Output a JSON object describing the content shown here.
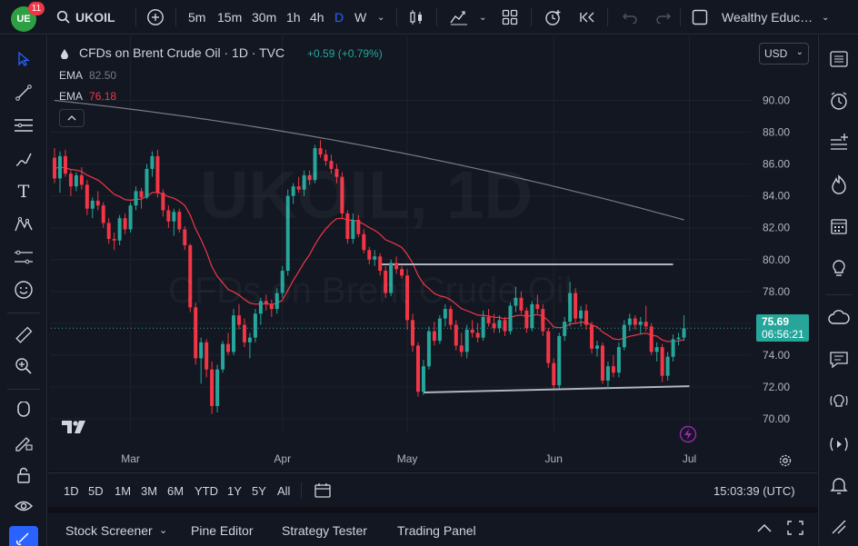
{
  "topbar": {
    "avatar_initials": "UE",
    "notification_count": "11",
    "symbol": "UKOIL",
    "intervals": [
      "5m",
      "15m",
      "30m",
      "1h",
      "4h",
      "D",
      "W"
    ],
    "active_interval": "D",
    "account_name": "Wealthy Educ…"
  },
  "legend": {
    "title": "CFDs on Brent Crude Oil · 1D · TVC",
    "change": "+0.59 (+0.79%)",
    "ema1_label": "EMA",
    "ema1_value": "82.50",
    "ema2_label": "EMA",
    "ema2_value": "76.18",
    "collapse_icon": "chevron-up"
  },
  "currency": "USD",
  "watermark": {
    "symbol": "UKOIL, 1D",
    "description": "CFDs on Brent Crude Oil"
  },
  "price_tag": {
    "price": "75.69",
    "countdown": "06:56:21"
  },
  "chart_data": {
    "type": "candlestick",
    "y_range": [
      69.2,
      91.8
    ],
    "y_ticks": [
      "90.00",
      "88.00",
      "86.00",
      "84.00",
      "82.00",
      "80.00",
      "78.00",
      "76.00",
      "74.00",
      "72.00",
      "70.00"
    ],
    "x_ticks": [
      "Mar",
      "Apr",
      "May",
      "Jun",
      "Jul"
    ],
    "candles_ohlc": [
      [
        86.4,
        87.0,
        84.8,
        85.1
      ],
      [
        85.1,
        86.8,
        84.2,
        86.5
      ],
      [
        86.5,
        86.9,
        85.2,
        85.4
      ],
      [
        85.4,
        85.6,
        84.0,
        84.6
      ],
      [
        84.6,
        85.5,
        84.3,
        85.3
      ],
      [
        85.3,
        85.8,
        84.4,
        84.7
      ],
      [
        84.7,
        85.0,
        82.8,
        83.2
      ],
      [
        83.2,
        83.9,
        82.6,
        83.7
      ],
      [
        83.7,
        84.3,
        83.1,
        83.4
      ],
      [
        83.4,
        83.6,
        82.0,
        82.3
      ],
      [
        82.3,
        82.6,
        81.0,
        81.3
      ],
      [
        81.3,
        81.7,
        80.6,
        81.2
      ],
      [
        81.2,
        82.8,
        80.9,
        82.6
      ],
      [
        82.6,
        82.9,
        81.6,
        81.9
      ],
      [
        81.9,
        83.6,
        81.7,
        83.4
      ],
      [
        83.4,
        84.6,
        83.1,
        84.3
      ],
      [
        84.3,
        84.5,
        83.2,
        83.9
      ],
      [
        83.9,
        86.0,
        83.8,
        85.7
      ],
      [
        85.7,
        86.8,
        85.2,
        86.5
      ],
      [
        86.5,
        86.9,
        83.9,
        84.2
      ],
      [
        84.2,
        84.4,
        82.7,
        83.1
      ],
      [
        83.1,
        83.4,
        82.0,
        82.4
      ],
      [
        82.4,
        83.2,
        81.5,
        83.0
      ],
      [
        83.0,
        83.2,
        81.7,
        81.9
      ],
      [
        81.9,
        82.1,
        80.6,
        80.9
      ],
      [
        80.9,
        81.0,
        76.7,
        77.0
      ],
      [
        77.0,
        77.3,
        73.4,
        73.8
      ],
      [
        73.8,
        75.1,
        72.2,
        74.8
      ],
      [
        74.8,
        75.0,
        72.6,
        73.1
      ],
      [
        73.1,
        73.6,
        70.3,
        70.8
      ],
      [
        70.8,
        73.4,
        70.4,
        73.1
      ],
      [
        73.1,
        74.9,
        72.9,
        74.7
      ],
      [
        74.7,
        75.4,
        74.0,
        74.2
      ],
      [
        74.2,
        76.9,
        74.0,
        76.5
      ],
      [
        76.5,
        77.2,
        75.6,
        75.9
      ],
      [
        75.9,
        76.3,
        74.5,
        74.8
      ],
      [
        74.8,
        75.4,
        73.8,
        75.1
      ],
      [
        75.1,
        76.9,
        74.8,
        76.6
      ],
      [
        76.6,
        77.6,
        75.9,
        77.4
      ],
      [
        77.4,
        77.8,
        76.8,
        77.2
      ],
      [
        77.2,
        77.5,
        76.4,
        76.9
      ],
      [
        76.9,
        78.2,
        76.6,
        77.9
      ],
      [
        77.9,
        79.6,
        77.6,
        79.3
      ],
      [
        79.3,
        84.4,
        79.0,
        84.0
      ],
      [
        84.0,
        84.8,
        83.5,
        84.6
      ],
      [
        84.6,
        85.2,
        84.2,
        84.4
      ],
      [
        84.4,
        85.6,
        84.0,
        85.3
      ],
      [
        85.3,
        85.6,
        84.7,
        85.0
      ],
      [
        85.0,
        87.2,
        84.8,
        87.0
      ],
      [
        87.0,
        87.5,
        86.4,
        86.6
      ],
      [
        86.6,
        86.9,
        85.9,
        86.2
      ],
      [
        86.2,
        86.6,
        85.4,
        85.7
      ],
      [
        85.7,
        86.0,
        84.8,
        85.2
      ],
      [
        85.2,
        85.5,
        82.6,
        82.9
      ],
      [
        82.9,
        83.1,
        81.0,
        81.3
      ],
      [
        81.3,
        82.9,
        81.0,
        82.5
      ],
      [
        82.5,
        82.8,
        81.4,
        81.6
      ],
      [
        81.6,
        81.9,
        80.4,
        80.6
      ],
      [
        80.6,
        80.8,
        79.7,
        80.0
      ],
      [
        80.0,
        80.6,
        79.6,
        80.2
      ],
      [
        80.2,
        80.4,
        79.0,
        79.3
      ],
      [
        79.3,
        79.6,
        77.6,
        77.9
      ],
      [
        77.9,
        80.0,
        77.7,
        79.8
      ],
      [
        79.8,
        80.2,
        79.1,
        79.4
      ],
      [
        79.4,
        79.6,
        78.8,
        79.0
      ],
      [
        79.0,
        79.4,
        75.6,
        76.2
      ],
      [
        76.2,
        76.6,
        74.2,
        74.6
      ],
      [
        74.6,
        74.8,
        71.4,
        71.7
      ],
      [
        71.7,
        73.7,
        71.5,
        73.3
      ],
      [
        73.3,
        75.8,
        73.1,
        75.5
      ],
      [
        75.5,
        76.1,
        74.6,
        74.9
      ],
      [
        74.9,
        76.5,
        74.7,
        76.3
      ],
      [
        76.3,
        77.2,
        75.8,
        76.9
      ],
      [
        76.9,
        77.1,
        75.6,
        75.9
      ],
      [
        75.9,
        76.2,
        74.3,
        74.6
      ],
      [
        74.6,
        75.4,
        73.9,
        74.2
      ],
      [
        74.2,
        75.9,
        73.8,
        75.6
      ],
      [
        75.6,
        76.2,
        75.1,
        75.4
      ],
      [
        75.4,
        76.0,
        74.8,
        75.1
      ],
      [
        75.1,
        76.8,
        74.9,
        76.4
      ],
      [
        76.4,
        76.9,
        75.8,
        76.0
      ],
      [
        76.0,
        76.6,
        75.4,
        75.7
      ],
      [
        75.7,
        76.5,
        75.4,
        76.2
      ],
      [
        76.2,
        76.4,
        75.2,
        75.5
      ],
      [
        75.5,
        77.3,
        75.3,
        77.1
      ],
      [
        77.1,
        78.3,
        76.7,
        77.6
      ],
      [
        77.6,
        78.0,
        76.6,
        76.8
      ],
      [
        76.8,
        77.0,
        75.4,
        75.7
      ],
      [
        75.7,
        77.4,
        75.5,
        77.2
      ],
      [
        77.2,
        77.8,
        76.6,
        76.9
      ],
      [
        76.9,
        77.2,
        75.2,
        75.5
      ],
      [
        75.5,
        75.7,
        73.2,
        73.5
      ],
      [
        73.5,
        73.8,
        71.9,
        72.1
      ],
      [
        72.1,
        75.4,
        71.9,
        75.2
      ],
      [
        75.2,
        76.4,
        74.9,
        76.1
      ],
      [
        76.1,
        78.6,
        75.8,
        77.9
      ],
      [
        77.9,
        78.2,
        76.0,
        76.3
      ],
      [
        76.3,
        77.1,
        75.8,
        76.8
      ],
      [
        76.8,
        77.2,
        75.6,
        75.9
      ],
      [
        75.9,
        76.1,
        74.1,
        74.4
      ],
      [
        74.4,
        74.9,
        73.9,
        74.6
      ],
      [
        74.6,
        74.8,
        72.2,
        72.4
      ],
      [
        72.4,
        73.6,
        71.9,
        73.3
      ],
      [
        73.3,
        74.0,
        72.6,
        72.9
      ],
      [
        72.9,
        74.8,
        72.6,
        74.5
      ],
      [
        74.5,
        76.2,
        74.3,
        75.9
      ],
      [
        75.9,
        76.6,
        75.5,
        76.3
      ],
      [
        76.3,
        76.5,
        75.6,
        75.9
      ],
      [
        75.9,
        76.4,
        75.3,
        76.1
      ],
      [
        76.1,
        77.1,
        75.5,
        75.8
      ],
      [
        75.8,
        76.0,
        74.0,
        74.2
      ],
      [
        74.2,
        74.8,
        73.6,
        74.5
      ],
      [
        74.5,
        74.7,
        72.3,
        72.7
      ],
      [
        72.7,
        74.2,
        72.4,
        73.9
      ],
      [
        73.9,
        75.3,
        73.6,
        75.0
      ],
      [
        75.0,
        75.4,
        74.6,
        75.1
      ],
      [
        75.1,
        76.5,
        74.9,
        75.69
      ]
    ],
    "ema_long": {
      "label": "EMA",
      "value": 82.5,
      "start": 90.0,
      "end": 82.5
    },
    "ema_short": {
      "label": "EMA",
      "value": 76.18
    },
    "horizontal_level": 79.7,
    "support_line": [
      72.0,
      72.1
    ],
    "current_price": 75.69
  },
  "range_bar": {
    "ranges": [
      "1D",
      "5D",
      "1M",
      "3M",
      "6M",
      "YTD",
      "1Y",
      "5Y",
      "All"
    ],
    "clock": "15:03:39 (UTC)"
  },
  "bottom_tabs": [
    "Stock Screener",
    "Pine Editor",
    "Strategy Tester",
    "Trading Panel"
  ],
  "colors": {
    "up": "#26a69a",
    "down": "#f23645",
    "ema_short": "#f23645",
    "ema_long": "#787b86",
    "background": "#131722"
  }
}
